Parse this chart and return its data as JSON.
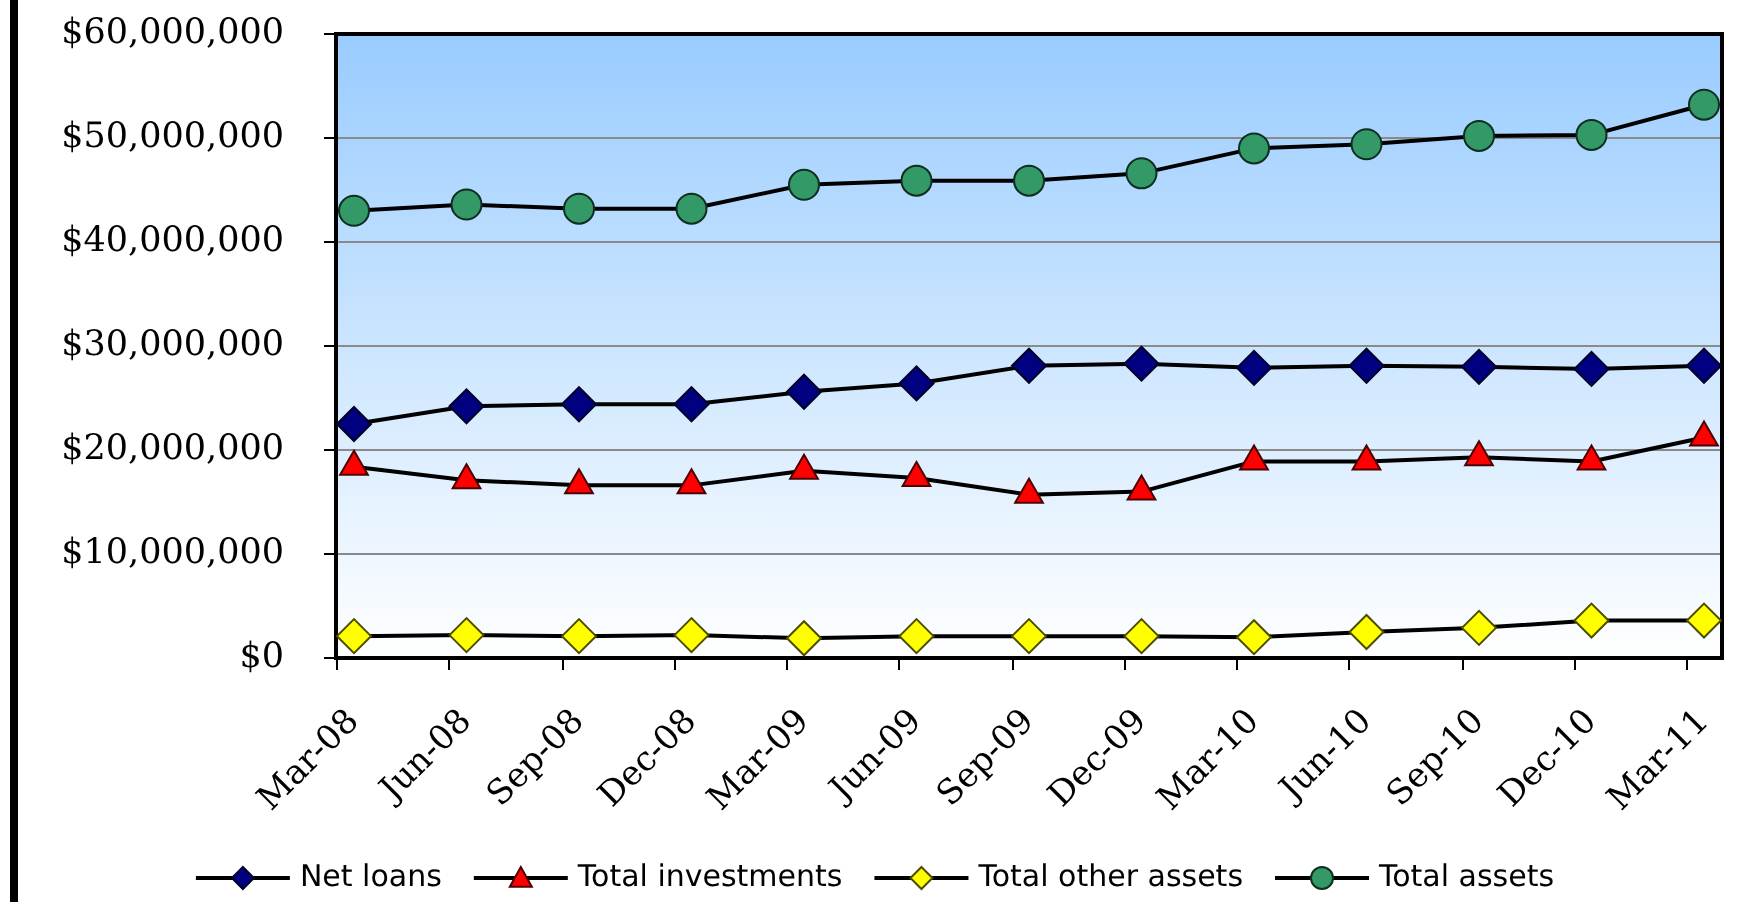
{
  "chart_data": {
    "type": "line",
    "categories": [
      "Mar-08",
      "Jun-08",
      "Sep-08",
      "Dec-08",
      "Mar-09",
      "Jun-09",
      "Sep-09",
      "Dec-09",
      "Mar-10",
      "Jun-10",
      "Sep-10",
      "Dec-10",
      "Mar-11"
    ],
    "series": [
      {
        "name": "Net loans",
        "color": "#000080",
        "marker": "diamond",
        "values": [
          22500000,
          24200000,
          24400000,
          24400000,
          25600000,
          26400000,
          28100000,
          28300000,
          27900000,
          28100000,
          28000000,
          27800000,
          28100000
        ]
      },
      {
        "name": "Total investments",
        "color": "#ff0000",
        "marker": "triangle",
        "values": [
          18400000,
          17100000,
          16600000,
          16600000,
          18000000,
          17300000,
          15700000,
          16000000,
          18900000,
          18900000,
          19300000,
          18900000,
          21200000
        ]
      },
      {
        "name": "Total other assets",
        "color": "#ffff00",
        "marker": "diamond",
        "values": [
          2100000,
          2200000,
          2100000,
          2200000,
          1900000,
          2100000,
          2100000,
          2100000,
          2000000,
          2500000,
          2900000,
          3600000,
          3600000
        ]
      },
      {
        "name": "Total assets",
        "color": "#339966",
        "marker": "circle",
        "values": [
          43000000,
          43600000,
          43200000,
          43200000,
          45500000,
          45900000,
          45900000,
          46600000,
          49000000,
          49400000,
          50200000,
          50300000,
          53200000
        ]
      }
    ],
    "ylim": [
      0,
      60000000
    ],
    "yticks": [
      {
        "value": 0,
        "label": "$0"
      },
      {
        "value": 10000000,
        "label": "$10,000,000"
      },
      {
        "value": 20000000,
        "label": "$20,000,000"
      },
      {
        "value": 30000000,
        "label": "$30,000,000"
      },
      {
        "value": 40000000,
        "label": "$40,000,000"
      },
      {
        "value": 50000000,
        "label": "$50,000,000"
      },
      {
        "value": 60000000,
        "label": "$60,000,000"
      }
    ],
    "grid": "y",
    "legend": "bottom"
  }
}
